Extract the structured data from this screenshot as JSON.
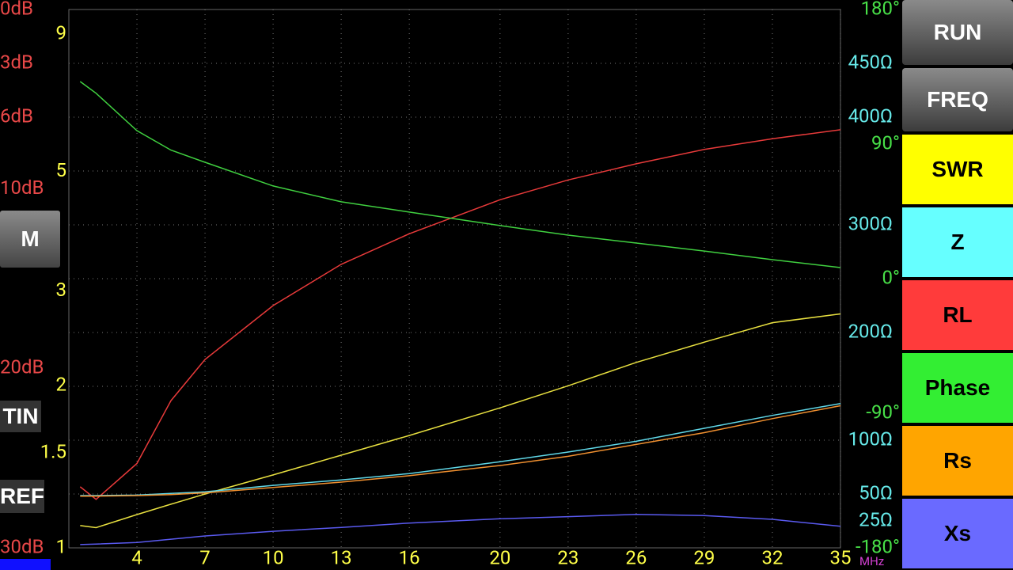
{
  "chart_data": {
    "type": "line",
    "x_unit": "MHz",
    "xlim": [
      1,
      35
    ],
    "xticks": [
      4,
      7,
      10,
      13,
      16,
      20,
      23,
      26,
      29,
      32,
      35
    ],
    "x": [
      1.5,
      2.2,
      4,
      5.5,
      7,
      10,
      13,
      16,
      20,
      23,
      26,
      29,
      32,
      35
    ],
    "axes": {
      "rl": {
        "lim": [
          30,
          0
        ],
        "color": "#e84848",
        "side": "left",
        "ticks": [
          {
            "value": 0,
            "label": "0dB"
          },
          {
            "value": 3,
            "label": "3dB"
          },
          {
            "value": 6,
            "label": "6dB"
          },
          {
            "value": 10,
            "label": "10dB"
          },
          {
            "value": 20,
            "label": "20dB"
          },
          {
            "value": 30,
            "label": "30dB"
          }
        ]
      },
      "swr": {
        "lim": [
          1,
          10
        ],
        "log": true,
        "color": "#ffff48",
        "side": "left",
        "ticks": [
          9,
          5,
          3,
          2,
          1.5,
          1
        ]
      },
      "z": {
        "lim": [
          0,
          500
        ],
        "color": "#66e8e8",
        "side": "right",
        "ticks": [
          {
            "value": 450,
            "label": "450Ω"
          },
          {
            "value": 400,
            "label": "400Ω"
          },
          {
            "value": 300,
            "label": "300Ω"
          },
          {
            "value": 200,
            "label": "200Ω"
          },
          {
            "value": 100,
            "label": "100Ω"
          },
          {
            "value": 50,
            "label": "50Ω"
          },
          {
            "value": 25,
            "label": "25Ω"
          }
        ]
      },
      "phase": {
        "lim": [
          -180,
          180
        ],
        "color": "#48e048",
        "side": "right",
        "ticks": [
          {
            "value": 180,
            "label": "180°"
          },
          {
            "value": 90,
            "label": "90°"
          },
          {
            "value": 0,
            "label": "0°"
          },
          {
            "value": -90,
            "label": "-90°"
          },
          {
            "value": -180,
            "label": "-180°"
          }
        ]
      }
    },
    "series": [
      {
        "name": "RL",
        "axis": "rl",
        "color": "#e83a3a",
        "values": [
          26.6,
          27.3,
          25.3,
          21.8,
          19.5,
          16.5,
          14.2,
          12.5,
          10.6,
          9.5,
          8.6,
          7.8,
          7.2,
          6.7
        ]
      },
      {
        "name": "SWR",
        "axis": "swr",
        "color": "#e8e040",
        "values": [
          1.1,
          1.09,
          1.153,
          1.205,
          1.259,
          1.366,
          1.486,
          1.617,
          1.82,
          2.0,
          2.21,
          2.41,
          2.62,
          2.72
        ]
      },
      {
        "name": "Phase",
        "axis": "phase",
        "color": "#40d040",
        "values": [
          131.8,
          124,
          99,
          86,
          77.8,
          62,
          51.4,
          44.5,
          35.5,
          29.1,
          23.8,
          18.5,
          12.7,
          7.4
        ]
      },
      {
        "name": "Z",
        "axis": "z",
        "color": "#60d8e8",
        "values": [
          48.5,
          48.5,
          49,
          50.5,
          52,
          58,
          63,
          69,
          80,
          89,
          99,
          111,
          123,
          134
        ]
      },
      {
        "name": "Rs",
        "axis": "z",
        "color": "#f09030",
        "values": [
          48,
          48,
          48.5,
          49.5,
          51,
          56,
          61,
          67,
          76.5,
          85,
          96,
          107,
          120,
          132
        ]
      },
      {
        "name": "Xs",
        "axis": "z",
        "color": "#5a5af0",
        "values": [
          3,
          3.5,
          5,
          8,
          11,
          15.4,
          19,
          23,
          27,
          29,
          31,
          30,
          26.5,
          20
        ]
      }
    ]
  },
  "buttons": [
    {
      "label": "RUN",
      "color": "gray"
    },
    {
      "label": "FREQ",
      "color": "gray"
    },
    {
      "label": "SWR",
      "color": "#ffff00"
    },
    {
      "label": "Z",
      "color": "#66ffff"
    },
    {
      "label": "RL",
      "color": "#ff3b3b"
    },
    {
      "label": "Phase",
      "color": "#33ee33"
    },
    {
      "label": "Rs",
      "color": "#ffa500"
    },
    {
      "label": "Xs",
      "color": "#6a6aff"
    }
  ],
  "left_controls": {
    "marker": "M",
    "tin": "TIN",
    "ref": "REF"
  }
}
